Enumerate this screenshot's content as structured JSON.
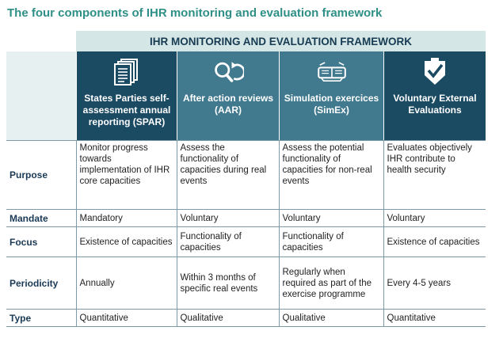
{
  "title": "The four components of IHR monitoring and evaluation framework",
  "framework_header": "IHR MONITORING AND EVALUATION FRAMEWORK",
  "colors": {
    "title": "#2e8f86",
    "dark_header": "#1b4a63",
    "light_header": "#41798e",
    "band": "#d4e6e6"
  },
  "columns": [
    {
      "label": "States Parties self-assessment annual reporting (SPAR)",
      "icon": "documents-icon"
    },
    {
      "label": "After action reviews (AAR)",
      "icon": "review-cycle-icon"
    },
    {
      "label": "Simulation exercices (SimEx)",
      "icon": "simulation-glasses-icon"
    },
    {
      "label": "Voluntary External Evaluations",
      "icon": "checked-shield-icon"
    }
  ],
  "rows": [
    {
      "label": "Purpose",
      "cells": [
        "Monitor progress towards implementation of IHR core capacities",
        "Assess the functionality of capacities during real events",
        "Assess the potential functionality of capacities for non-real events",
        "Evaluates objectively IHR contribute to health security"
      ]
    },
    {
      "label": "Mandate",
      "cells": [
        "Mandatory",
        "Voluntary",
        "Voluntary",
        "Voluntary"
      ]
    },
    {
      "label": "Focus",
      "cells": [
        "Existence of capacities",
        "Functionality of capacities",
        "Functionality of capacities",
        "Existence of capacities"
      ]
    },
    {
      "label": "Periodicity",
      "cells": [
        "Annually",
        "Within 3 months of specific real events",
        "Regularly when required as part of the exercise programme",
        "Every 4-5 years"
      ]
    },
    {
      "label": "Type",
      "cells": [
        "Quantitative",
        "Qualitative",
        "Qualitative",
        "Quantitative"
      ]
    }
  ]
}
